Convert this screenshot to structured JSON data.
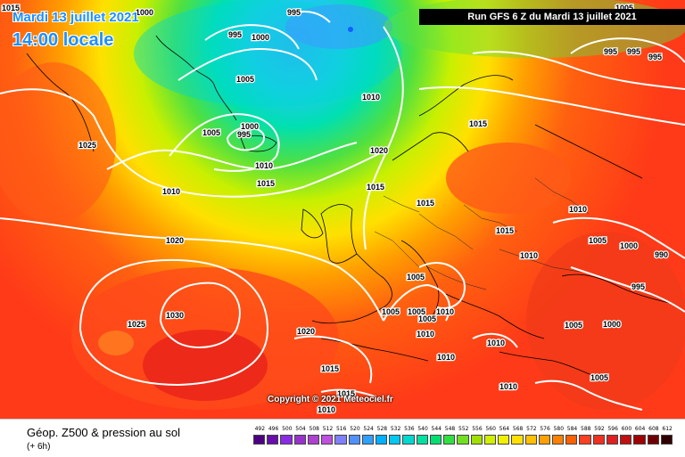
{
  "title": {
    "date": "Mardi 13 juillet 2021",
    "time": "14:00 locale"
  },
  "run_banner": "Run GFS 6 Z du Mardi 13 juillet 2021",
  "copyright": "Copyright © 2021 Meteociel.fr",
  "legend": {
    "title": "Géop. Z500 & pression au sol",
    "subtitle": "(+ 6h)",
    "scale_values": [
      "492",
      "496",
      "500",
      "504",
      "508",
      "512",
      "516",
      "520",
      "524",
      "528",
      "532",
      "536",
      "540",
      "544",
      "548",
      "552",
      "556",
      "560",
      "564",
      "568",
      "572",
      "576",
      "580",
      "584",
      "588",
      "592",
      "596",
      "600",
      "604",
      "608",
      "612"
    ],
    "scale_colors": [
      "#4b0082",
      "#6a0dad",
      "#8a2be2",
      "#9932cc",
      "#b040d0",
      "#c050e0",
      "#8080ff",
      "#5090ff",
      "#30a0ff",
      "#00b0ff",
      "#00c8f0",
      "#00d8d0",
      "#00e0a0",
      "#00e070",
      "#30e040",
      "#70e020",
      "#a0e000",
      "#d0f000",
      "#f0f000",
      "#ffe000",
      "#ffc000",
      "#ffa000",
      "#ff8000",
      "#ff6000",
      "#ff4020",
      "#f03020",
      "#e02020",
      "#c01010",
      "#a00000",
      "#700000",
      "#300000"
    ]
  },
  "isobars": [
    {
      "label": "1015"
    },
    {
      "label": "1000"
    },
    {
      "label": "995"
    },
    {
      "label": "995"
    },
    {
      "label": "1000"
    },
    {
      "label": "1005"
    },
    {
      "label": "1000"
    },
    {
      "label": "995"
    },
    {
      "label": "1005"
    },
    {
      "label": "1010"
    },
    {
      "label": "1025"
    },
    {
      "label": "1010"
    },
    {
      "label": "1015"
    },
    {
      "label": "1010"
    },
    {
      "label": "1015"
    },
    {
      "label": "1020"
    },
    {
      "label": "1015"
    },
    {
      "label": "1015"
    },
    {
      "label": "1015"
    },
    {
      "label": "1020"
    },
    {
      "label": "1010"
    },
    {
      "label": "1010"
    },
    {
      "label": "1005"
    },
    {
      "label": "1000"
    },
    {
      "label": "990"
    },
    {
      "label": "995"
    },
    {
      "label": "1030"
    },
    {
      "label": "1025"
    },
    {
      "label": "1005"
    },
    {
      "label": "1005"
    },
    {
      "label": "1005"
    },
    {
      "label": "1005"
    },
    {
      "label": "1010"
    },
    {
      "label": "1010"
    },
    {
      "label": "1010"
    },
    {
      "label": "1020"
    },
    {
      "label": "1010"
    },
    {
      "label": "1005"
    },
    {
      "label": "1000"
    },
    {
      "label": "1015"
    },
    {
      "label": "1010"
    },
    {
      "label": "1005"
    },
    {
      "label": "1015"
    },
    {
      "label": "1010"
    },
    {
      "label": "995"
    },
    {
      "label": "995"
    },
    {
      "label": "995"
    },
    {
      "label": "1005"
    }
  ]
}
